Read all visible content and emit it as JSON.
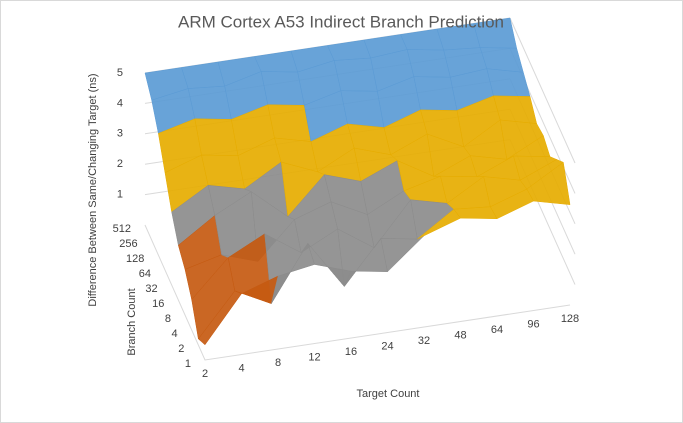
{
  "chart_data": {
    "type": "surface",
    "title": "ARM Cortex A53 Indirect Branch Prediction",
    "x_label": "Target Count",
    "y_label": "Branch Count",
    "z_label": "Difference Between  Same/Changing Target (ns)",
    "categories": [
      "2",
      "4",
      "8",
      "12",
      "16",
      "24",
      "32",
      "48",
      "64",
      "96",
      "128"
    ],
    "series": [
      {
        "name": "1",
        "values": [
          0.5,
          2.0,
          2.4,
          2.6,
          2.2,
          2.0,
          3.0,
          3.4,
          3.2,
          3.6,
          3.3
        ]
      },
      {
        "name": "2",
        "values": [
          0.2,
          1.6,
          1.0,
          2.8,
          1.2,
          2.6,
          2.4,
          3.2,
          3.1,
          3.5,
          4.2
        ]
      },
      {
        "name": "4",
        "values": [
          1.0,
          2.2,
          2.8,
          2.0,
          2.6,
          1.8,
          3.2,
          2.9,
          3.6,
          3.3,
          3.8
        ]
      },
      {
        "name": "8",
        "values": [
          1.5,
          1.8,
          1.4,
          2.6,
          3.0,
          2.4,
          3.0,
          3.3,
          3.1,
          3.6,
          3.4
        ]
      },
      {
        "name": "16",
        "values": [
          1.8,
          2.6,
          3.2,
          2.2,
          3.4,
          3.0,
          3.5,
          2.8,
          3.3,
          3.0,
          3.6
        ]
      },
      {
        "name": "32",
        "values": [
          2.4,
          3.1,
          2.8,
          3.5,
          3.0,
          3.6,
          3.2,
          3.7,
          3.1,
          3.8,
          3.5
        ]
      },
      {
        "name": "64",
        "values": [
          3.2,
          3.6,
          3.4,
          3.8,
          3.5,
          3.9,
          3.6,
          4.0,
          3.8,
          4.1,
          3.9
        ]
      },
      {
        "name": "128",
        "values": [
          4.0,
          4.3,
          4.1,
          4.4,
          4.2,
          4.5,
          4.3,
          4.6,
          4.4,
          4.5,
          4.2
        ]
      },
      {
        "name": "256",
        "values": [
          4.6,
          4.8,
          4.7,
          5,
          4.8,
          5,
          4.9,
          5,
          4.8,
          4.7,
          4.5
        ]
      },
      {
        "name": "512",
        "values": [
          5,
          5,
          5,
          5,
          5,
          5,
          5,
          5,
          5,
          5,
          5
        ]
      }
    ],
    "zlim": [
      0,
      5
    ],
    "zticks": [
      1,
      2,
      3,
      4,
      5
    ],
    "band_colors": [
      "#2f5597",
      "#c55a11",
      "#8c8c8c",
      "#e6ac00",
      "#5b9bd5",
      "#70ad47"
    ],
    "grid": true
  }
}
